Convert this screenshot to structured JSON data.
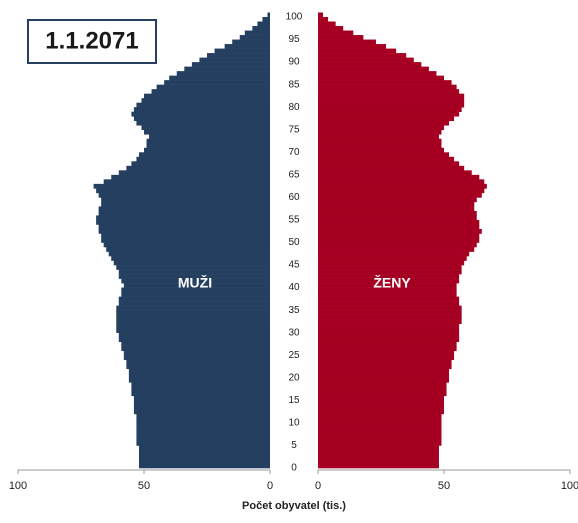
{
  "chart_data": {
    "type": "pyramid",
    "title": "1.1.2071",
    "x_label": "Počet obyvatel (tis.)",
    "ages": [
      0,
      1,
      2,
      3,
      4,
      5,
      6,
      7,
      8,
      9,
      10,
      11,
      12,
      13,
      14,
      15,
      16,
      17,
      18,
      19,
      20,
      21,
      22,
      23,
      24,
      25,
      26,
      27,
      28,
      29,
      30,
      31,
      32,
      33,
      34,
      35,
      36,
      37,
      38,
      39,
      40,
      41,
      42,
      43,
      44,
      45,
      46,
      47,
      48,
      49,
      50,
      51,
      52,
      53,
      54,
      55,
      56,
      57,
      58,
      59,
      60,
      61,
      62,
      63,
      64,
      65,
      66,
      67,
      68,
      69,
      70,
      71,
      72,
      73,
      74,
      75,
      76,
      77,
      78,
      79,
      80,
      81,
      82,
      83,
      84,
      85,
      86,
      87,
      88,
      89,
      90,
      91,
      92,
      93,
      94,
      95,
      96,
      97,
      98,
      99,
      100
    ],
    "series": [
      {
        "name": "MUŽI",
        "color": "#243f60",
        "side": "left",
        "values": [
          52,
          52,
          52,
          52,
          52,
          53,
          53,
          53,
          53,
          53,
          53,
          53,
          54,
          54,
          54,
          54,
          55,
          55,
          55,
          56,
          56,
          56,
          57,
          57,
          58,
          58,
          59,
          59,
          60,
          60,
          61,
          61,
          61,
          61,
          61,
          61,
          60,
          60,
          59,
          59,
          58,
          59,
          60,
          60,
          61,
          62,
          63,
          64,
          65,
          66,
          67,
          67,
          68,
          68,
          69,
          69,
          68,
          68,
          67,
          67,
          68,
          69,
          70,
          66,
          63,
          60,
          57,
          55,
          53,
          52,
          50,
          49,
          49,
          48,
          50,
          51,
          53,
          54,
          55,
          54,
          53,
          51,
          50,
          47,
          45,
          42,
          40,
          37,
          34,
          31,
          28,
          25,
          22,
          18,
          15,
          12,
          10,
          7,
          5,
          3,
          1
        ]
      },
      {
        "name": "ŽENY",
        "color": "#a50021",
        "side": "right",
        "values": [
          48,
          48,
          48,
          48,
          48,
          49,
          49,
          49,
          49,
          49,
          49,
          49,
          50,
          50,
          50,
          50,
          51,
          51,
          51,
          52,
          52,
          52,
          53,
          53,
          54,
          54,
          55,
          55,
          56,
          56,
          56,
          56,
          57,
          57,
          57,
          57,
          56,
          56,
          55,
          55,
          55,
          56,
          56,
          57,
          57,
          58,
          59,
          60,
          62,
          63,
          64,
          64,
          65,
          64,
          64,
          63,
          63,
          62,
          62,
          63,
          65,
          66,
          67,
          66,
          64,
          61,
          58,
          56,
          54,
          52,
          50,
          49,
          49,
          48,
          49,
          50,
          52,
          54,
          56,
          57,
          58,
          58,
          58,
          56,
          55,
          53,
          50,
          47,
          44,
          41,
          38,
          35,
          31,
          27,
          23,
          18,
          14,
          10,
          7,
          4,
          2
        ]
      }
    ],
    "ylim": [
      0,
      100
    ],
    "yticks": [
      0,
      5,
      10,
      15,
      20,
      25,
      30,
      35,
      40,
      45,
      50,
      55,
      60,
      65,
      70,
      75,
      80,
      85,
      90,
      95,
      100
    ],
    "xlim": [
      0,
      100
    ],
    "xticks": [
      0,
      50,
      100
    ]
  }
}
